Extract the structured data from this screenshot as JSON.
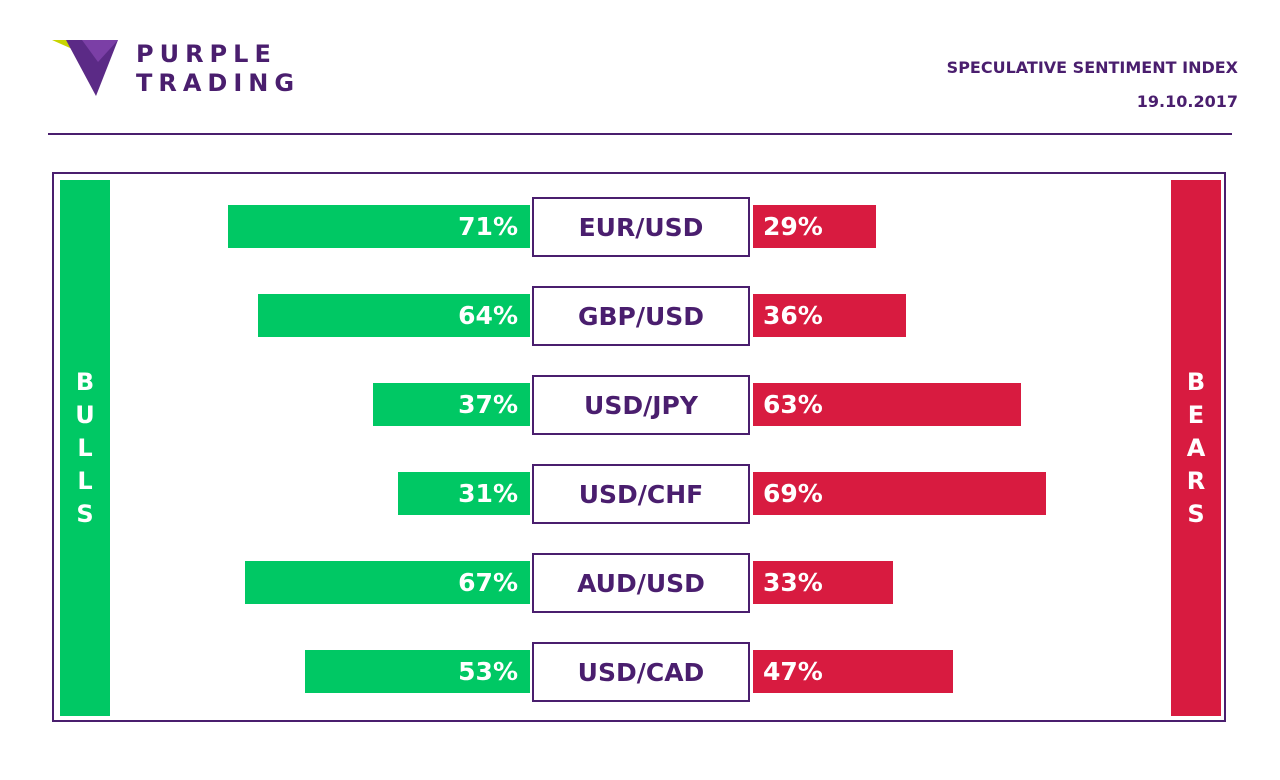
{
  "brand": {
    "line1": "PURPLE",
    "line2": "TRADING"
  },
  "header": {
    "title": "SPECULATIVE SENTIMENT INDEX",
    "date": "19.10.2017"
  },
  "side_labels": {
    "left": "BULLS",
    "right": "BEARS"
  },
  "colors": {
    "bull": "#00c864",
    "bear": "#d81b40",
    "accent": "#4a1e6e"
  },
  "chart_data": {
    "type": "bar",
    "categories": [
      "EUR/USD",
      "GBP/USD",
      "USD/JPY",
      "USD/CHF",
      "AUD/USD",
      "USD/CAD"
    ],
    "series": [
      {
        "name": "BULLS",
        "values": [
          71,
          64,
          37,
          31,
          67,
          53
        ]
      },
      {
        "name": "BEARS",
        "values": [
          29,
          36,
          63,
          69,
          33,
          47
        ]
      }
    ],
    "unit": "%",
    "title": "SPECULATIVE SENTIMENT INDEX"
  }
}
